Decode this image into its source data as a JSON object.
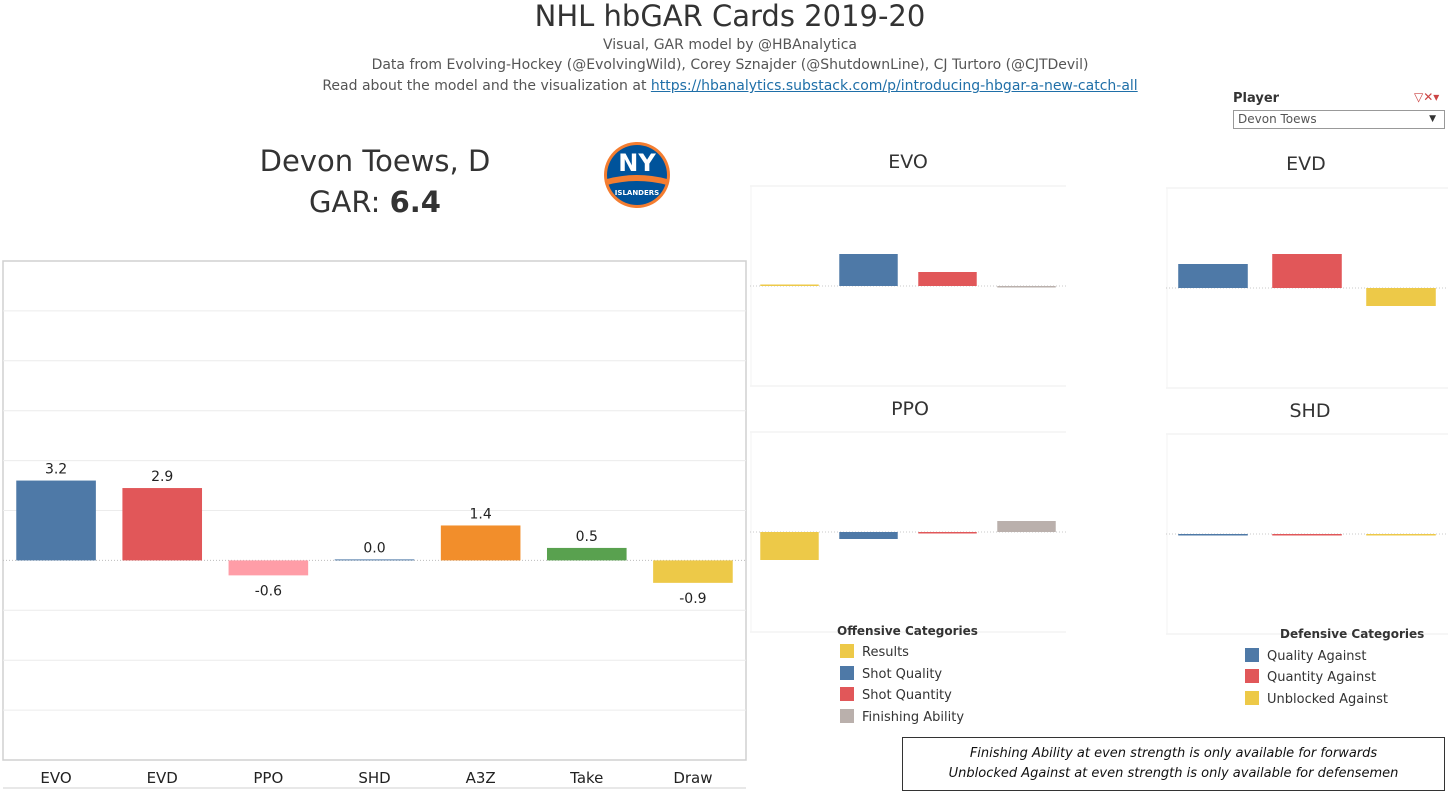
{
  "header": {
    "title": "NHL hbGAR Cards 2019-20",
    "credit": "Visual, GAR model by @HBAnalytica",
    "data_source": "Data from Evolving-Hockey (@EvolvingWild), Corey Sznajder (@ShutdownLine), CJ Turtoro (@CJTDevil)",
    "read_prefix": "Read about the model and the visualization at",
    "link_text": "https://hbanalytics.substack.com/p/introducing-hbgar-a-new-catch-all"
  },
  "filter": {
    "label": "Player",
    "selected": "Devon Toews"
  },
  "player": {
    "name": "Devon Toews, D",
    "gar_label": "GAR: ",
    "gar_value": "6.4"
  },
  "logo": {
    "text": "NY",
    "subtext": "ISLANDERS",
    "colors": {
      "blue": "#00539b",
      "orange": "#f47d30"
    }
  },
  "chart_data": [
    {
      "type": "bar",
      "categories": [
        "EVO",
        "EVD",
        "PPO",
        "SHD",
        "A3Z",
        "Take",
        "Draw"
      ],
      "values": [
        3.2,
        2.9,
        -0.6,
        0.0,
        1.4,
        0.5,
        -0.9
      ],
      "data_labels": [
        "3.2",
        "2.9",
        "-0.6",
        "0.0",
        "1.4",
        "0.5",
        "-0.9"
      ],
      "colors": [
        "#4e79a7",
        "#e15759",
        "#ff9da7",
        "#4e79a7",
        "#f28e2b",
        "#59a14f",
        "#edc948"
      ],
      "ylim": [
        -8,
        12
      ],
      "grid": true
    },
    {
      "type": "bar",
      "title": "EVO",
      "categories": [
        "Results",
        "Shot Quality",
        "Shot Quantity",
        "Finishing Ability"
      ],
      "values": [
        0.05,
        1.6,
        0.7,
        -0.03
      ],
      "colors": [
        "#edc948",
        "#4e79a7",
        "#e15759",
        "#bab0ac"
      ],
      "ylim": [
        -5,
        5
      ]
    },
    {
      "type": "bar",
      "title": "EVD",
      "categories": [
        "Quality Against",
        "Quantity Against",
        "Unblocked Against"
      ],
      "values": [
        1.2,
        1.7,
        -0.9
      ],
      "colors": [
        "#4e79a7",
        "#e15759",
        "#edc948"
      ],
      "ylim": [
        -5,
        5
      ]
    },
    {
      "type": "bar",
      "title": "PPO",
      "categories": [
        "Results",
        "Shot Quality",
        "Shot Quantity",
        "Finishing Ability"
      ],
      "values": [
        -1.4,
        -0.35,
        -0.05,
        0.55
      ],
      "colors": [
        "#edc948",
        "#4e79a7",
        "#e15759",
        "#bab0ac"
      ],
      "ylim": [
        -5,
        5
      ]
    },
    {
      "type": "bar",
      "title": "SHD",
      "categories": [
        "Quality Against",
        "Quantity Against",
        "Unblocked Against"
      ],
      "values": [
        -0.05,
        -0.05,
        -0.05
      ],
      "colors": [
        "#4e79a7",
        "#e15759",
        "#edc948"
      ],
      "ylim": [
        -5,
        5
      ]
    }
  ],
  "legends": {
    "offensive": {
      "title": "Offensive Categories",
      "items": [
        {
          "label": "Results",
          "color": "#edc948"
        },
        {
          "label": "Shot Quality",
          "color": "#4e79a7"
        },
        {
          "label": "Shot Quantity",
          "color": "#e15759"
        },
        {
          "label": "Finishing Ability",
          "color": "#bab0ac"
        }
      ]
    },
    "defensive": {
      "title": "Defensive Categories",
      "items": [
        {
          "label": "Quality Against",
          "color": "#4e79a7"
        },
        {
          "label": "Quantity Against",
          "color": "#e15759"
        },
        {
          "label": "Unblocked Against",
          "color": "#edc948"
        }
      ]
    }
  },
  "notes": [
    "Finishing Ability at even strength is only available for forwards",
    "Unblocked Against at even strength is only available for defensemen"
  ]
}
